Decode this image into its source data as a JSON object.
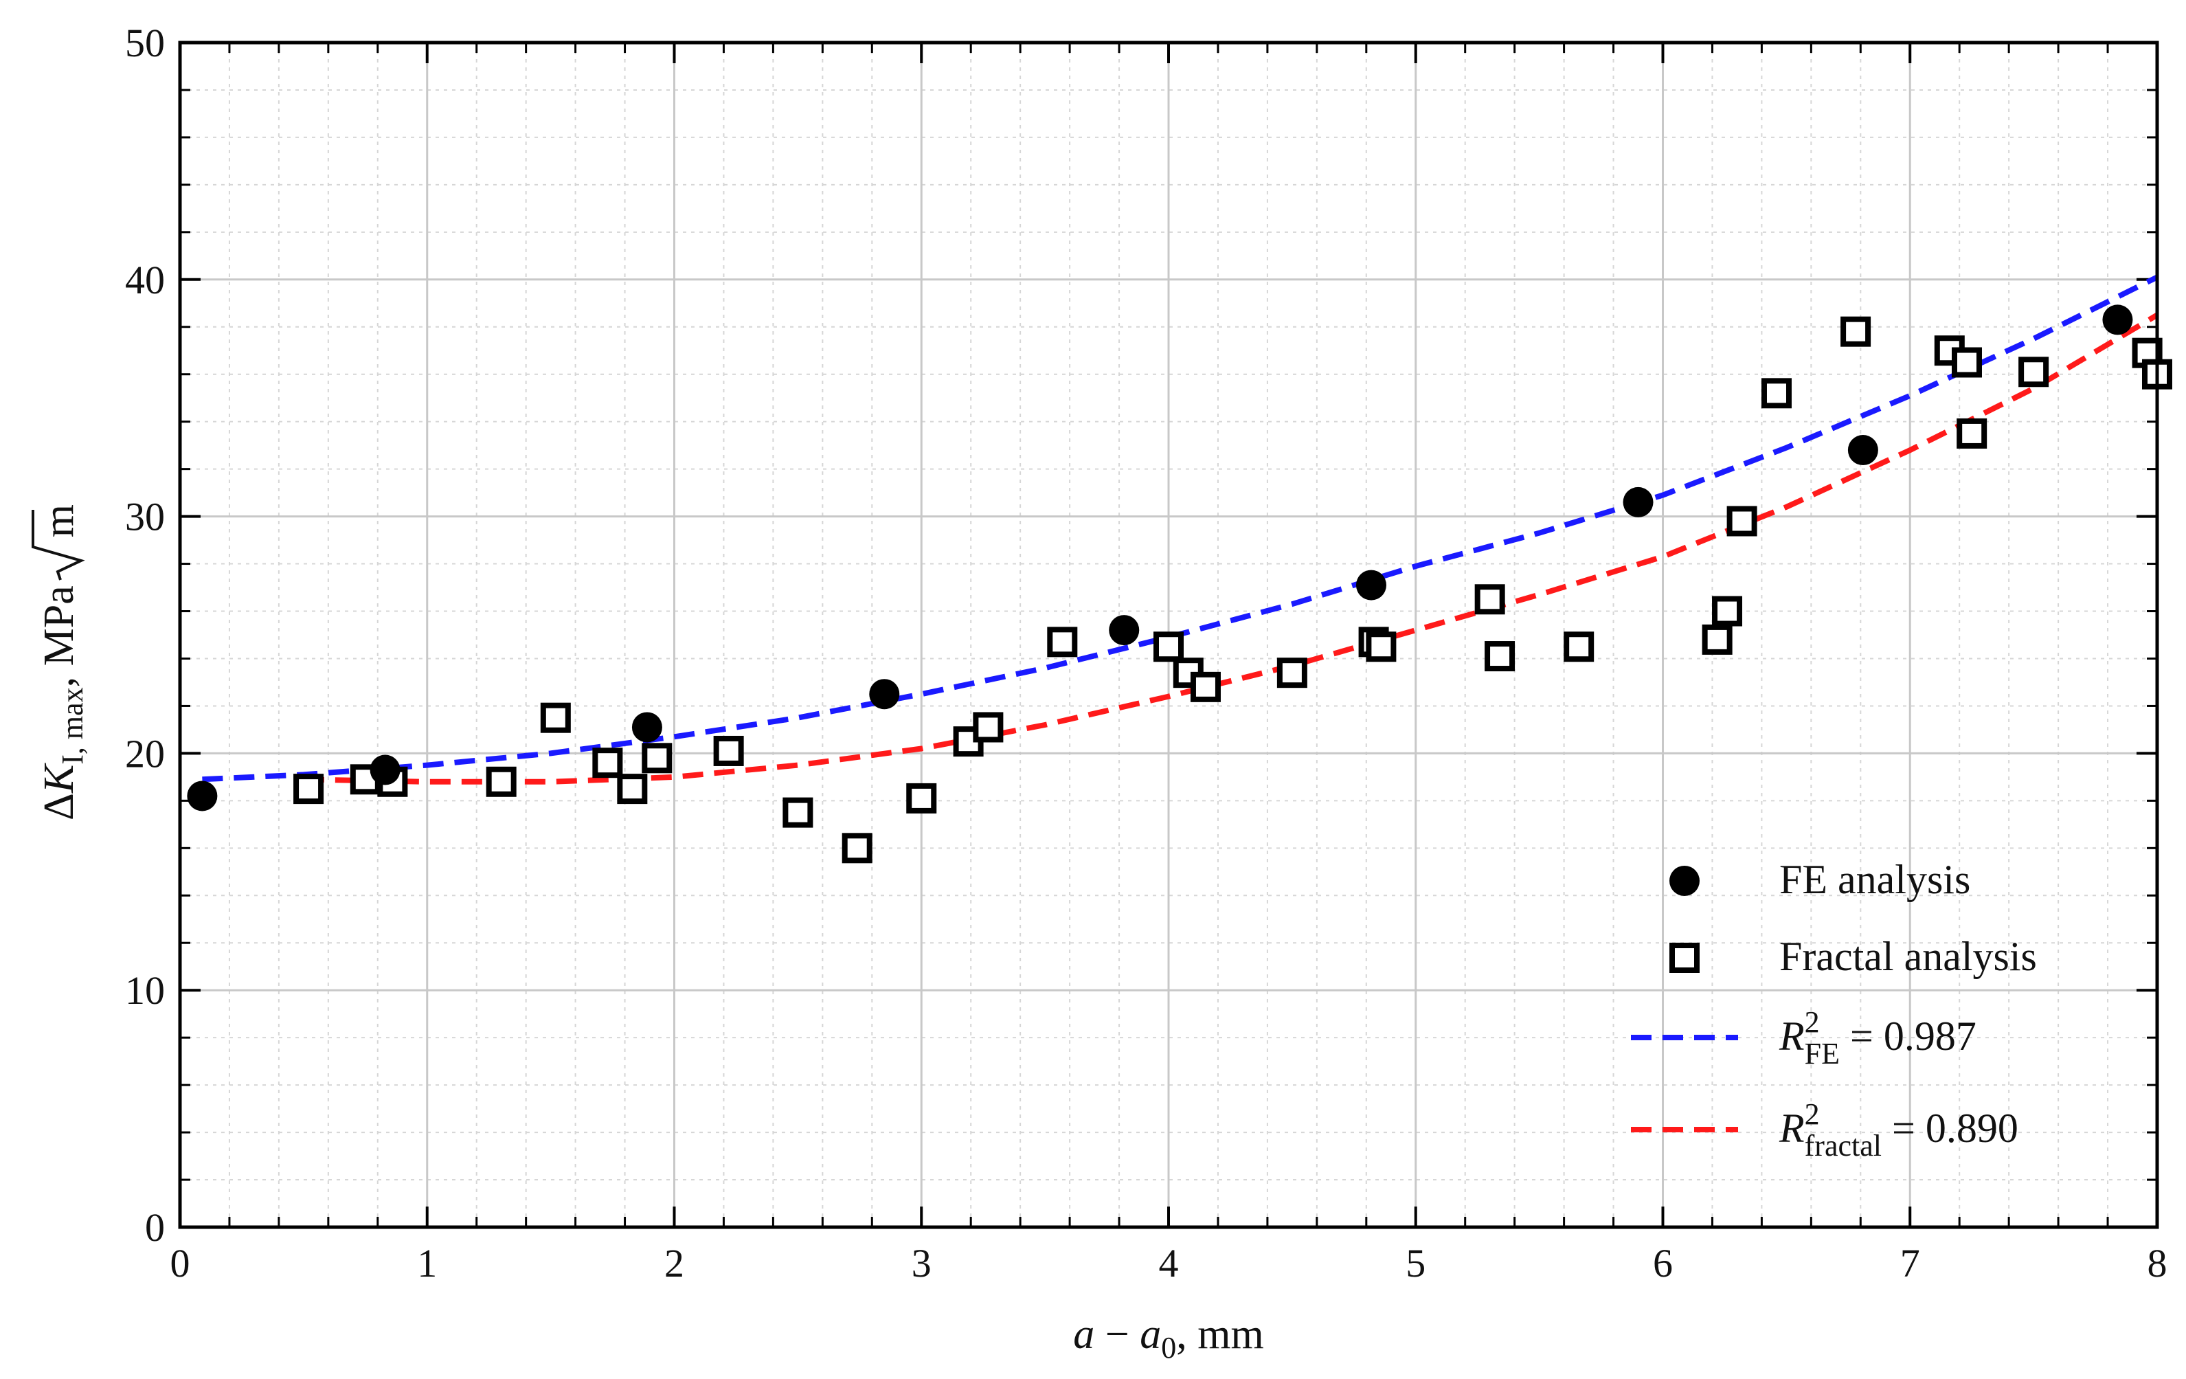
{
  "chart_data": {
    "type": "scatter",
    "xlim": [
      0,
      8
    ],
    "ylim": [
      0,
      50
    ],
    "x_ticks": [
      0,
      1,
      2,
      3,
      4,
      5,
      6,
      7,
      8
    ],
    "y_ticks": [
      0,
      10,
      20,
      30,
      40,
      50
    ],
    "x_tick_labels": [
      "0",
      "1",
      "2",
      "3",
      "4",
      "5",
      "6",
      "7",
      "8"
    ],
    "y_tick_labels": [
      "0",
      "10",
      "20",
      "30",
      "40",
      "50"
    ],
    "grid": {
      "major": true,
      "minor": true
    },
    "xlabel": {
      "prefix": "a",
      "minus": " − ",
      "var": "a",
      "sub": "0",
      "suffix": ", mm"
    },
    "ylabel": {
      "delta": "Δ",
      "var": "K",
      "sub": "I, max",
      "units": ", MPa",
      "root": "m"
    },
    "legend": {
      "placement": "bottom-right",
      "fe_label": "FE analysis",
      "fractal_label": "Fractal analysis",
      "fit_fe": {
        "R": "R",
        "sup": "2",
        "sub": "FE",
        "value": " = 0.987"
      },
      "fit_fractal": {
        "R": "R",
        "sup": "2",
        "sub": "fractal",
        "value": " = 0.890"
      }
    },
    "series": [
      {
        "name": "FE analysis",
        "marker": "filled-circle",
        "color": "#000000",
        "points": [
          [
            0.09,
            18.2
          ],
          [
            0.83,
            19.3
          ],
          [
            1.89,
            21.1
          ],
          [
            2.85,
            22.5
          ],
          [
            3.82,
            25.2
          ],
          [
            4.82,
            27.1
          ],
          [
            5.9,
            30.6
          ],
          [
            6.81,
            32.8
          ],
          [
            7.84,
            38.3
          ]
        ]
      },
      {
        "name": "Fractal analysis",
        "marker": "open-square",
        "color": "#000000",
        "points": [
          [
            0.52,
            18.5
          ],
          [
            0.75,
            18.9
          ],
          [
            0.86,
            18.8
          ],
          [
            1.3,
            18.8
          ],
          [
            1.52,
            21.5
          ],
          [
            1.73,
            19.6
          ],
          [
            1.83,
            18.5
          ],
          [
            1.93,
            19.8
          ],
          [
            2.22,
            20.1
          ],
          [
            2.5,
            17.5
          ],
          [
            2.74,
            16.0
          ],
          [
            3.0,
            18.1
          ],
          [
            3.19,
            20.5
          ],
          [
            3.27,
            21.1
          ],
          [
            3.57,
            24.7
          ],
          [
            4.0,
            24.5
          ],
          [
            4.08,
            23.4
          ],
          [
            4.15,
            22.8
          ],
          [
            4.5,
            23.4
          ],
          [
            4.83,
            24.7
          ],
          [
            4.86,
            24.5
          ],
          [
            5.3,
            26.5
          ],
          [
            5.34,
            24.1
          ],
          [
            5.66,
            24.5
          ],
          [
            6.22,
            24.8
          ],
          [
            6.26,
            26.0
          ],
          [
            6.32,
            29.8
          ],
          [
            6.46,
            35.2
          ],
          [
            6.78,
            37.8
          ],
          [
            7.16,
            37.0
          ],
          [
            7.23,
            36.5
          ],
          [
            7.25,
            33.5
          ],
          [
            7.5,
            36.1
          ],
          [
            7.96,
            36.9
          ],
          [
            8.0,
            36.0
          ]
        ]
      },
      {
        "name": "R² FE fit",
        "type": "line",
        "style": "dashed",
        "color": "#1a1aff",
        "points": [
          [
            0.09,
            18.9
          ],
          [
            0.5,
            19.1
          ],
          [
            1.0,
            19.5
          ],
          [
            1.5,
            20.0
          ],
          [
            2.0,
            20.7
          ],
          [
            2.5,
            21.5
          ],
          [
            3.0,
            22.5
          ],
          [
            3.5,
            23.6
          ],
          [
            4.0,
            24.9
          ],
          [
            4.5,
            26.3
          ],
          [
            5.0,
            27.9
          ],
          [
            5.5,
            29.3
          ],
          [
            6.0,
            30.9
          ],
          [
            6.5,
            32.9
          ],
          [
            7.0,
            35.1
          ],
          [
            7.5,
            37.5
          ],
          [
            8.0,
            40.1
          ]
        ]
      },
      {
        "name": "R² fractal fit",
        "type": "line",
        "style": "dashed",
        "color": "#ff1a1a",
        "points": [
          [
            0.5,
            18.9
          ],
          [
            1.0,
            18.8
          ],
          [
            1.5,
            18.8
          ],
          [
            2.0,
            19.0
          ],
          [
            2.5,
            19.5
          ],
          [
            3.0,
            20.2
          ],
          [
            3.5,
            21.2
          ],
          [
            4.0,
            22.4
          ],
          [
            4.5,
            23.7
          ],
          [
            5.0,
            25.2
          ],
          [
            5.5,
            26.7
          ],
          [
            6.0,
            28.3
          ],
          [
            6.5,
            30.4
          ],
          [
            7.0,
            32.8
          ],
          [
            7.5,
            35.4
          ],
          [
            8.0,
            38.5
          ]
        ]
      }
    ]
  }
}
